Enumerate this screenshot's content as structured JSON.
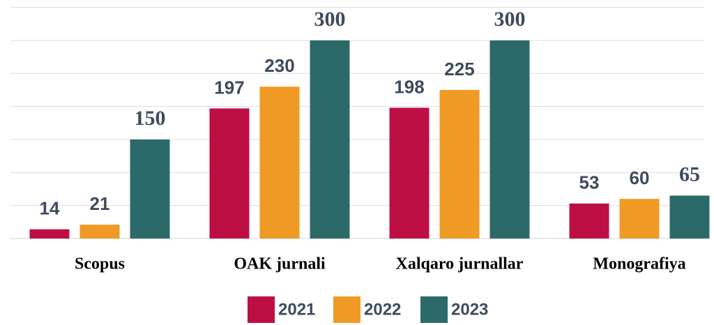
{
  "chart_data": {
    "type": "bar",
    "categories": [
      "Scopus",
      "OAK jurnali",
      "Xalqaro jurnallar",
      "Monografiya"
    ],
    "series": [
      {
        "name": "2021",
        "color": "#be0f45",
        "values": [
          14,
          197,
          198,
          53
        ]
      },
      {
        "name": "2022",
        "color": "#f09a26",
        "values": [
          21,
          230,
          225,
          60
        ]
      },
      {
        "name": "2023",
        "color": "#2c6a6a",
        "values": [
          150,
          300,
          300,
          65
        ]
      }
    ],
    "ylim": [
      0,
      350
    ],
    "yticks": [
      0,
      50,
      100,
      150,
      200,
      250,
      300,
      350
    ],
    "grid": true,
    "legend": "bottom"
  }
}
